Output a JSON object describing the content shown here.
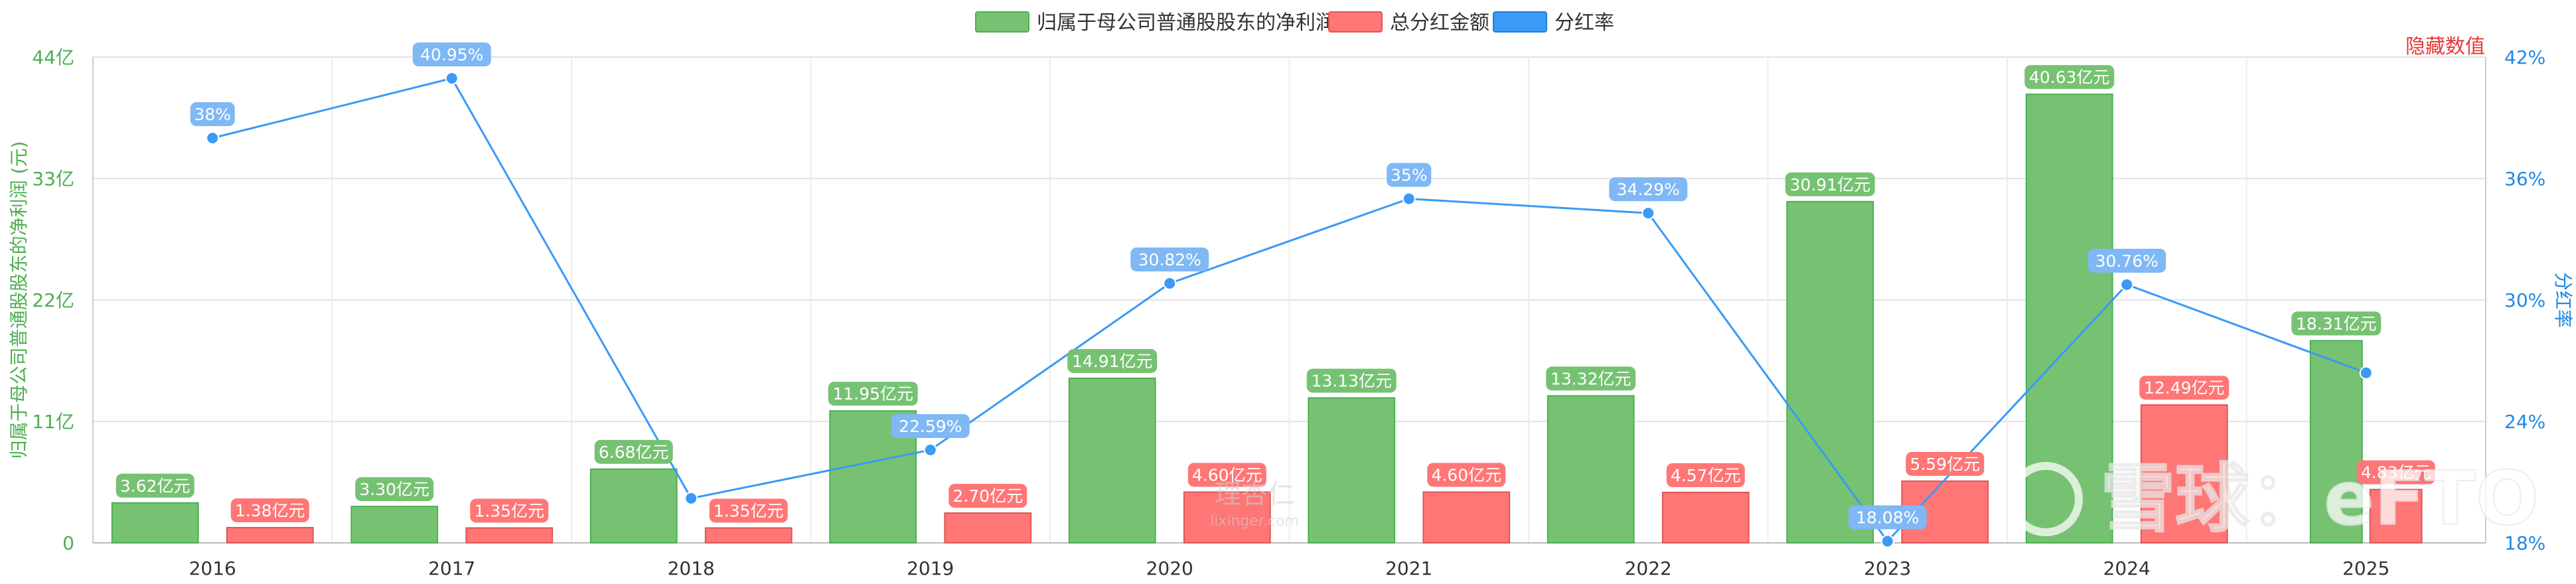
{
  "legend": {
    "items": [
      {
        "label": "归属于母公司普通股股东的净利润",
        "color": "#76c272"
      },
      {
        "label": "总分红金额",
        "color": "#ff7676"
      },
      {
        "label": "分红率",
        "color": "#3a9af5"
      }
    ]
  },
  "hide_values_label": "隐藏数值",
  "watermark": {
    "site_text": "理杏仁",
    "site_url": "lixinger.com",
    "brand_text": "雪球：eFTO"
  },
  "chart_data": {
    "type": "bar",
    "categories": [
      "2016",
      "2017",
      "2018",
      "2019",
      "2020",
      "2021",
      "2022",
      "2023",
      "2024",
      "2025"
    ],
    "ylabel": "归属于母公司普通股股东的净利润 (元)",
    "y2label": "分红率",
    "ylim": [
      0,
      44
    ],
    "y2lim": [
      18,
      42
    ],
    "yticks": [
      "0",
      "11亿",
      "22亿",
      "33亿",
      "44亿"
    ],
    "y2ticks": [
      "18%",
      "24%",
      "30%",
      "36%",
      "42%"
    ],
    "colors": {
      "profit": "#76c272",
      "profit_border": "#4caf50",
      "dividend": "#ff7676",
      "dividend_border": "#e05555",
      "ratio": "#3a9af5",
      "ratio_label": "#7fb8f5"
    },
    "series": [
      {
        "name": "归属于母公司普通股股东的净利润",
        "kind": "bar",
        "values": [
          3.62,
          3.3,
          6.68,
          11.95,
          14.91,
          13.13,
          13.32,
          30.91,
          40.63,
          18.31
        ],
        "labels": [
          "3.62亿元",
          "3.30亿元",
          "6.68亿元",
          "11.95亿元",
          "14.91亿元",
          "13.13亿元",
          "13.32亿元",
          "30.91亿元",
          "40.63亿元",
          "18.31亿元"
        ]
      },
      {
        "name": "总分红金额",
        "kind": "bar",
        "values": [
          1.38,
          1.35,
          1.35,
          2.7,
          4.6,
          4.6,
          4.57,
          5.59,
          12.49,
          4.83
        ],
        "labels": [
          "1.38亿元",
          "1.35亿元",
          "1.35亿元",
          "2.70亿元",
          "4.60亿元",
          "4.60亿元",
          "4.57亿元",
          "5.59亿元",
          "12.49亿元",
          "4.83亿元"
        ]
      },
      {
        "name": "分红率",
        "kind": "line",
        "axis": "right",
        "values": [
          38.0,
          40.95,
          20.2,
          22.59,
          30.82,
          35.0,
          34.29,
          18.08,
          30.76,
          26.4
        ],
        "labels": [
          "38%",
          "40.95%",
          "",
          "22.59%",
          "30.82%",
          "35%",
          "34.29%",
          "18.08%",
          "30.76%",
          ""
        ]
      }
    ]
  }
}
